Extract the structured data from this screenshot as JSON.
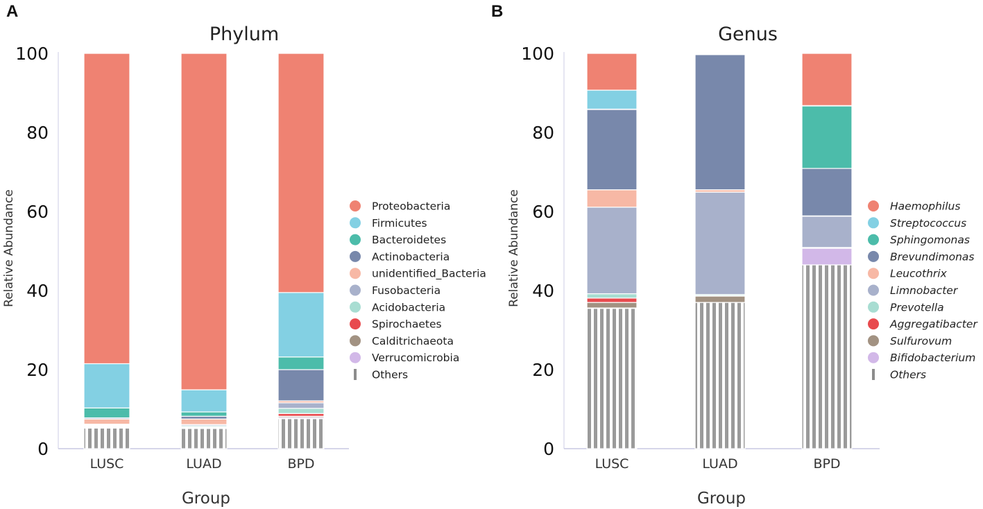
{
  "colors": {
    "Haemophilus": "#ef8272",
    "Proteobacteria": "#ef8272",
    "Firmicutes": "#83d0e3",
    "Streptococcus": "#83d0e3",
    "Bacteroidetes": "#4cbcaa",
    "Sphingomonas": "#4cbcaa",
    "Actinobacteria": "#7888ab",
    "Brevundimonas": "#7888ab",
    "unidentified_Bacteria": "#f7b8a5",
    "Leucothrix": "#f7b8a5",
    "Fusobacteria": "#a8b1cb",
    "Limnobacter": "#a8b1cb",
    "Acidobacteria": "#a8ddd2",
    "Prevotella": "#a8ddd2",
    "Spirochaetes": "#e84a4e",
    "Aggregatibacter": "#e84a4e",
    "Calditrichaeota": "#a29282",
    "Sulfurovum": "#a29282",
    "Verrucomicrobia": "#d2b8e8",
    "Bifidobacterium": "#d2b8e8",
    "Others": "#9a9a9a"
  },
  "chart_data": [
    {
      "panel": "A",
      "type": "bar",
      "stacked": true,
      "title": "Phylum",
      "xlabel": "Group",
      "ylabel": "Relative Abundance",
      "ylim": [
        0,
        100
      ],
      "yticks": [
        "0",
        "20",
        "40",
        "60",
        "80",
        "100"
      ],
      "categories": [
        "LUSC",
        "LUAD",
        "BPD"
      ],
      "legend_italic": false,
      "legend_position": "right",
      "series": [
        {
          "name": "Others",
          "values": [
            5.2,
            5.1,
            7.6
          ]
        },
        {
          "name": "Verrucomicrobia",
          "values": [
            0.2,
            0.2,
            0.3
          ]
        },
        {
          "name": "Calditrichaeota",
          "values": [
            0.2,
            0.1,
            0.3
          ]
        },
        {
          "name": "Spirochaetes",
          "values": [
            0.2,
            0.1,
            0.7
          ]
        },
        {
          "name": "Acidobacteria",
          "values": [
            0.2,
            0.3,
            1.3
          ]
        },
        {
          "name": "Fusobacteria",
          "values": [
            0.2,
            0.3,
            1.4
          ]
        },
        {
          "name": "unidentified_Bacteria",
          "values": [
            1.3,
            1.4,
            0.5
          ]
        },
        {
          "name": "Actinobacteria",
          "values": [
            0.3,
            0.7,
            7.9
          ]
        },
        {
          "name": "Bacteroidetes",
          "values": [
            2.5,
            1.1,
            3.2
          ]
        },
        {
          "name": "Firmicutes",
          "values": [
            11.2,
            5.6,
            16.3
          ]
        },
        {
          "name": "Proteobacteria",
          "values": [
            78.5,
            85.1,
            60.5
          ]
        }
      ],
      "legend": [
        "Proteobacteria",
        "Firmicutes",
        "Bacteroidetes",
        "Actinobacteria",
        "unidentified_Bacteria",
        "Fusobacteria",
        "Acidobacteria",
        "Spirochaetes",
        "Calditrichaeota",
        "Verrucomicrobia",
        "Others"
      ]
    },
    {
      "panel": "B",
      "type": "bar",
      "stacked": true,
      "title": "Genus",
      "xlabel": "Group",
      "ylabel": "Relative Abundance",
      "ylim": [
        0,
        100
      ],
      "yticks": [
        "0",
        "20",
        "40",
        "60",
        "80",
        "100"
      ],
      "categories": [
        "LUSC",
        "LUAD",
        "BPD"
      ],
      "legend_italic": true,
      "legend_position": "right",
      "series": [
        {
          "name": "Others",
          "values": [
            35.5,
            37.0,
            46.5
          ]
        },
        {
          "name": "Bifidobacterium",
          "values": [
            0.1,
            0.0,
            4.2
          ]
        },
        {
          "name": "Sulfurovum",
          "values": [
            1.4,
            1.6,
            0.1
          ]
        },
        {
          "name": "Aggregatibacter",
          "values": [
            1.1,
            0.1,
            0.0
          ]
        },
        {
          "name": "Prevotella",
          "values": [
            1.1,
            0.3,
            0.1
          ]
        },
        {
          "name": "Limnobacter",
          "values": [
            21.9,
            25.9,
            7.9
          ]
        },
        {
          "name": "Leucothrix",
          "values": [
            4.4,
            0.6,
            0.1
          ]
        },
        {
          "name": "Brevundimonas",
          "values": [
            20.3,
            34.2,
            12.0
          ]
        },
        {
          "name": "Sphingomonas",
          "values": [
            0.1,
            0.1,
            15.8
          ]
        },
        {
          "name": "Streptococcus",
          "values": [
            4.8,
            0.1,
            0.1
          ]
        },
        {
          "name": "Haemophilus",
          "values": [
            9.3,
            0.1,
            13.2
          ]
        }
      ],
      "legend": [
        "Haemophilus",
        "Streptococcus",
        "Sphingomonas",
        "Brevundimonas",
        "Leucothrix",
        "Limnobacter",
        "Prevotella",
        "Aggregatibacter",
        "Sulfurovum",
        "Bifidobacterium",
        "Others"
      ]
    }
  ]
}
